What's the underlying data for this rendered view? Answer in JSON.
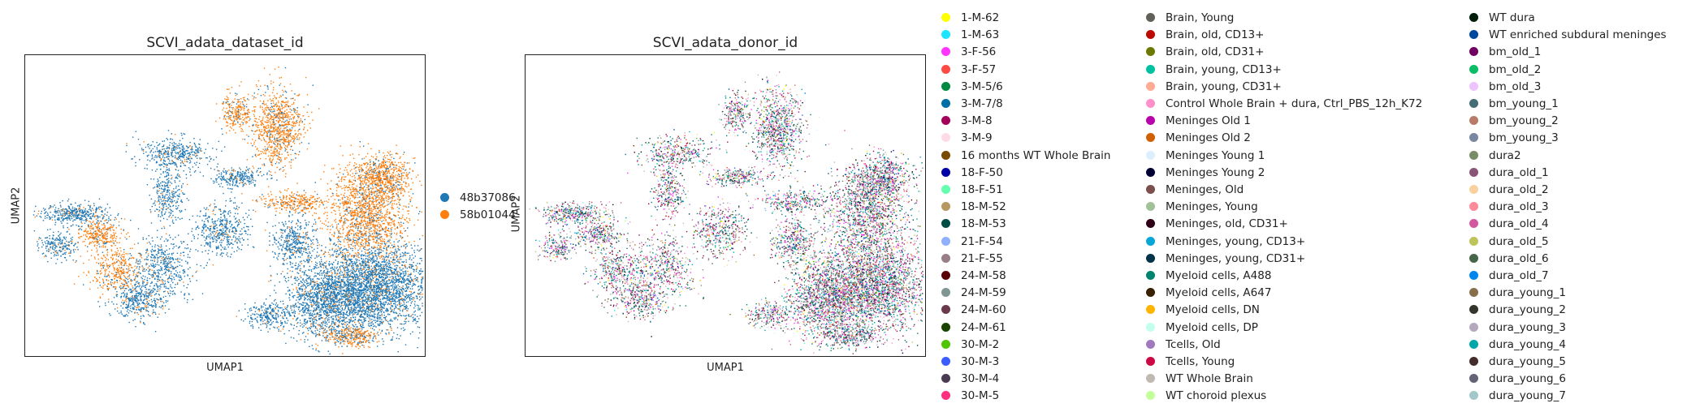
{
  "chart_data": [
    {
      "type": "scatter",
      "title": "SCVI_adata_dataset_id",
      "xlabel": "UMAP1",
      "ylabel": "UMAP2",
      "grid": false,
      "legend_placement": "right",
      "series": [
        {
          "name": "48b37086",
          "color": "#1f77b4"
        },
        {
          "name": "58b01044",
          "color": "#ff7f0e"
        }
      ]
    },
    {
      "type": "scatter",
      "title": "SCVI_adata_donor_id",
      "xlabel": "UMAP1",
      "ylabel": "UMAP2",
      "grid": false,
      "legend_placement": "right",
      "series": [
        {
          "name": "1-M-62",
          "color": "#ffff00"
        },
        {
          "name": "1-M-63",
          "color": "#1ce6ff"
        },
        {
          "name": "3-F-56",
          "color": "#ff34ff"
        },
        {
          "name": "3-F-57",
          "color": "#ff4a46"
        },
        {
          "name": "3-M-5/6",
          "color": "#008941"
        },
        {
          "name": "3-M-7/8",
          "color": "#006fa6"
        },
        {
          "name": "3-M-8",
          "color": "#a30059"
        },
        {
          "name": "3-M-9",
          "color": "#ffdbe5"
        },
        {
          "name": "16 months WT Whole Brain",
          "color": "#7a4900"
        },
        {
          "name": "18-F-50",
          "color": "#0000a6"
        },
        {
          "name": "18-F-51",
          "color": "#63ffac"
        },
        {
          "name": "18-M-52",
          "color": "#b79762"
        },
        {
          "name": "18-M-53",
          "color": "#004d43"
        },
        {
          "name": "21-F-54",
          "color": "#8fb0ff"
        },
        {
          "name": "21-F-55",
          "color": "#997d87"
        },
        {
          "name": "24-M-58",
          "color": "#5a0007"
        },
        {
          "name": "24-M-59",
          "color": "#809693"
        },
        {
          "name": "24-M-60",
          "color": "#6a3a4c"
        },
        {
          "name": "24-M-61",
          "color": "#1b4400"
        },
        {
          "name": "30-M-2",
          "color": "#4fc601"
        },
        {
          "name": "30-M-3",
          "color": "#3b5dff"
        },
        {
          "name": "30-M-4",
          "color": "#4a3b53"
        },
        {
          "name": "30-M-5",
          "color": "#ff2f80"
        },
        {
          "name": "Brain, Young",
          "color": "#61615a"
        },
        {
          "name": "Brain, old, CD13+",
          "color": "#ba0900"
        },
        {
          "name": "Brain, old, CD31+",
          "color": "#6b7900"
        },
        {
          "name": "Brain, young, CD13+",
          "color": "#00c2a0"
        },
        {
          "name": "Brain, young, CD31+",
          "color": "#ffaa92"
        },
        {
          "name": "Control Whole Brain + dura, Ctrl_PBS_12h_K72",
          "color": "#ff90c9"
        },
        {
          "name": "Meninges Old 1",
          "color": "#b903aa"
        },
        {
          "name": "Meninges Old 2",
          "color": "#d16100"
        },
        {
          "name": "Meninges Young 1",
          "color": "#ddefff"
        },
        {
          "name": "Meninges Young 2",
          "color": "#000035"
        },
        {
          "name": "Meninges, Old",
          "color": "#7b4f4b"
        },
        {
          "name": "Meninges, Young",
          "color": "#a1c299"
        },
        {
          "name": "Meninges, old, CD31+",
          "color": "#300018"
        },
        {
          "name": "Meninges, young, CD13+",
          "color": "#0aa6d8"
        },
        {
          "name": "Meninges, young, CD31+",
          "color": "#013349"
        },
        {
          "name": "Myeloid cells, A488",
          "color": "#00846f"
        },
        {
          "name": "Myeloid cells, A647",
          "color": "#372101"
        },
        {
          "name": "Myeloid cells, DN",
          "color": "#ffb500"
        },
        {
          "name": "Myeloid cells, DP",
          "color": "#c2ffed"
        },
        {
          "name": "Tcells, Old",
          "color": "#a079bf"
        },
        {
          "name": "Tcells, Young",
          "color": "#cc0744"
        },
        {
          "name": "WT Whole Brain",
          "color": "#c0b9b2"
        },
        {
          "name": "WT choroid plexus",
          "color": "#c2ff99"
        },
        {
          "name": "WT dura",
          "color": "#001e09"
        },
        {
          "name": "WT enriched subdural meninges",
          "color": "#00489c"
        },
        {
          "name": "bm_old_1",
          "color": "#6f0062"
        },
        {
          "name": "bm_old_2",
          "color": "#0cbd66"
        },
        {
          "name": "bm_old_3",
          "color": "#eec3ff"
        },
        {
          "name": "bm_young_1",
          "color": "#456d75"
        },
        {
          "name": "bm_young_2",
          "color": "#b77b68"
        },
        {
          "name": "bm_young_3",
          "color": "#7a87a1"
        },
        {
          "name": "dura2",
          "color": "#788d66"
        },
        {
          "name": "dura_old_1",
          "color": "#885578"
        },
        {
          "name": "dura_old_2",
          "color": "#fad09f"
        },
        {
          "name": "dura_old_3",
          "color": "#ff8a9a"
        },
        {
          "name": "dura_old_4",
          "color": "#d157a0"
        },
        {
          "name": "dura_old_5",
          "color": "#bec459"
        },
        {
          "name": "dura_old_6",
          "color": "#456648"
        },
        {
          "name": "dura_old_7",
          "color": "#0086ed"
        },
        {
          "name": "dura_young_1",
          "color": "#886f4c"
        },
        {
          "name": "dura_young_2",
          "color": "#34362d"
        },
        {
          "name": "dura_young_3",
          "color": "#b4a8bd"
        },
        {
          "name": "dura_young_4",
          "color": "#00a6aa"
        },
        {
          "name": "dura_young_5",
          "color": "#452c2c"
        },
        {
          "name": "dura_young_6",
          "color": "#636375"
        },
        {
          "name": "dura_young_7",
          "color": "#a3c8c9"
        }
      ]
    }
  ]
}
